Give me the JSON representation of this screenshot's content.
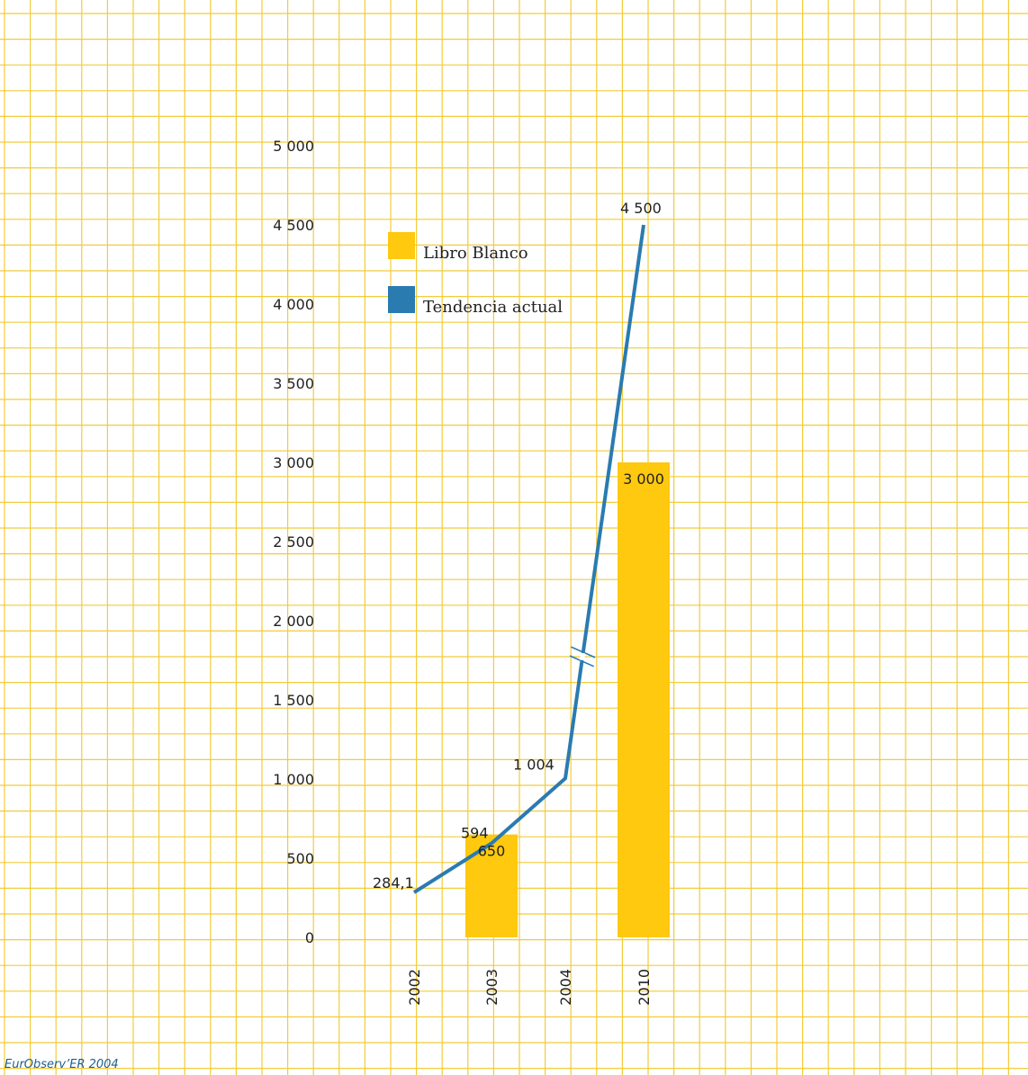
{
  "source": "EurObserv’ER 2004",
  "colors": {
    "grid": "#f2cc3a",
    "bar": "#fec90e",
    "line": "#2a7bb0",
    "text": "#222222",
    "source_text": "#1f5f8e"
  },
  "legend": {
    "items": [
      {
        "label": "Libro Blanco",
        "color": "#fec90e"
      },
      {
        "label": "Tendencia actual",
        "color": "#2a7bb0"
      }
    ],
    "placement": "top-center"
  },
  "chart_data": {
    "type": "bar",
    "categories": [
      "2002",
      "2003",
      "2004",
      "2010"
    ],
    "ylim": [
      0,
      5000
    ],
    "yticks": [
      {
        "value": 0,
        "label": "0"
      },
      {
        "value": 500,
        "label": "500"
      },
      {
        "value": 1000,
        "label": "1 000"
      },
      {
        "value": 1500,
        "label": "1 500"
      },
      {
        "value": 2000,
        "label": "2 000"
      },
      {
        "value": 2500,
        "label": "2 500"
      },
      {
        "value": 3000,
        "label": "3 000"
      },
      {
        "value": 3500,
        "label": "3 500"
      },
      {
        "value": 4000,
        "label": "4 000"
      },
      {
        "value": 4500,
        "label": "4 500"
      },
      {
        "value": 5000,
        "label": "5 000"
      }
    ],
    "series": [
      {
        "name": "Libro Blanco",
        "kind": "bar",
        "points": [
          {
            "category": "2003",
            "value": 650,
            "label": "650"
          },
          {
            "category": "2010",
            "value": 3000,
            "label": "3 000"
          }
        ]
      },
      {
        "name": "Tendencia actual",
        "kind": "line",
        "points": [
          {
            "category": "2002",
            "value": 284.1,
            "label": "284,1"
          },
          {
            "category": "2003",
            "value": 594,
            "label": "594"
          },
          {
            "category": "2004",
            "value": 1004,
            "label": "1 004"
          },
          {
            "category": "2010",
            "value": 4500,
            "label": "4 500"
          }
        ],
        "axis_break": {
          "between": [
            "2004",
            "2010"
          ]
        }
      }
    ],
    "grid": true,
    "title": "",
    "xlabel": "",
    "ylabel": ""
  }
}
